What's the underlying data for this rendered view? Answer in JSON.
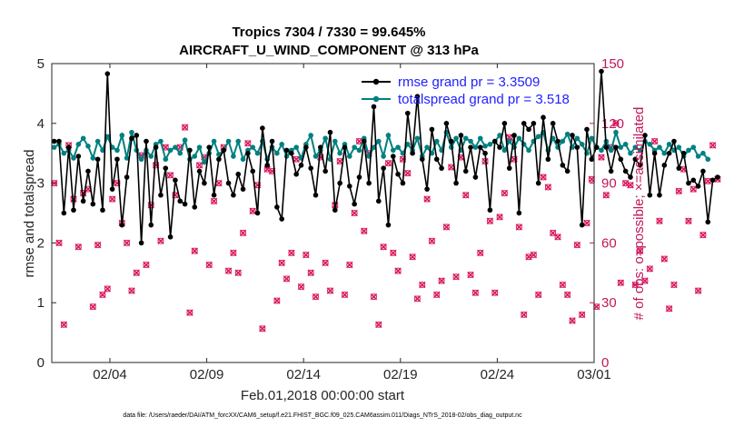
{
  "chart_data": {
    "type": "line",
    "title": "Tropics 7304 / 7330 = 99.645%",
    "subtitle": "AIRCRAFT_U_WIND_COMPONENT @ 313 hPa",
    "xlabel": "Feb.01,2018 00:00:00 start",
    "ylabel": "rmse and totalspread",
    "y2label": "# of obs: o=possible; ×=assimilated",
    "xlim": [
      0,
      28
    ],
    "ylim": [
      0,
      5
    ],
    "y2lim": [
      0,
      150
    ],
    "xticks": [
      {
        "x": 3,
        "label": "02/04"
      },
      {
        "x": 8,
        "label": "02/09"
      },
      {
        "x": 13,
        "label": "02/14"
      },
      {
        "x": 18,
        "label": "02/19"
      },
      {
        "x": 23,
        "label": "02/24"
      },
      {
        "x": 28,
        "label": "03/01"
      }
    ],
    "yticks": [
      "0",
      "1",
      "2",
      "3",
      "4",
      "5"
    ],
    "y2ticks": [
      "0",
      "30",
      "60",
      "90",
      "120",
      "150"
    ],
    "legend": [
      "rmse grand pr = 3.3509",
      "totalspread grand pr = 3.518"
    ],
    "legend_position": "top-right",
    "footer": "data file: /Users/raeder/DAI/ATM_forcXX/CAM6_setup/f.e21.FHIST_BGC.f09_025.CAM6assim.011/Diags_NTrS_2018-02/obs_diag_output.nc",
    "series": [
      {
        "name": "rmse",
        "color": "#000000",
        "x_start": 0.125,
        "x_step": 0.25,
        "values": [
          3.7,
          3.7,
          2.5,
          3.6,
          2.55,
          3.45,
          2.7,
          3.2,
          2.65,
          3.4,
          2.55,
          4.83,
          2.9,
          3.4,
          2.3,
          3.1,
          3.75,
          3.8,
          2.0,
          3.7,
          2.3,
          3.6,
          2.8,
          3.25,
          2.1,
          3.05,
          2.7,
          2.65,
          3.55,
          2.6,
          3.2,
          3.0,
          3.6,
          2.8,
          3.4,
          3.55,
          3.0,
          2.8,
          3.15,
          2.9,
          3.5,
          3.2,
          2.5,
          3.92,
          3.3,
          3.7,
          2.6,
          2.4,
          3.55,
          3.5,
          3.15,
          3.3,
          3.6,
          3.25,
          2.8,
          3.6,
          3.2,
          3.85,
          2.55,
          3.0,
          3.6,
          2.95,
          2.65,
          3.1,
          3.7,
          3.0,
          4.28,
          2.7,
          3.25,
          2.3,
          3.45,
          3.15,
          3.0,
          4.17,
          3.5,
          4.45,
          3.4,
          2.9,
          3.9,
          3.4,
          3.25,
          4.0,
          3.7,
          3.0,
          3.8,
          3.2,
          3.6,
          3.1,
          3.6,
          3.5,
          2.55,
          3.7,
          3.6,
          4.0,
          3.25,
          3.8,
          2.5,
          4.0,
          3.9,
          4.0,
          3.0,
          4.1,
          3.4,
          4.0,
          3.7,
          3.3,
          3.2,
          3.8,
          3.6,
          2.3,
          3.9,
          3.4,
          3.6,
          4.87,
          3.6,
          3.2,
          3.6,
          3.4,
          3.2,
          3.1,
          3.4,
          3.3,
          3.8,
          2.8,
          3.5,
          2.8,
          3.3,
          3.5,
          3.7,
          3.25,
          3.5,
          3.0,
          3.05,
          2.95,
          3.2,
          2.35,
          3.05,
          3.1
        ]
      },
      {
        "name": "totalspread",
        "color": "#008080",
        "x_start": 0.125,
        "x_step": 0.25,
        "values": [
          3.6,
          3.65,
          3.5,
          3.55,
          3.42,
          3.65,
          3.75,
          3.62,
          3.42,
          3.7,
          3.55,
          3.78,
          3.6,
          3.55,
          3.8,
          3.42,
          3.85,
          3.55,
          3.4,
          3.55,
          3.45,
          3.65,
          3.7,
          3.4,
          3.55,
          3.6,
          3.5,
          3.72,
          3.4,
          3.45,
          3.6,
          3.35,
          3.5,
          3.7,
          3.48,
          3.55,
          3.7,
          3.45,
          3.7,
          3.4,
          3.55,
          3.6,
          3.5,
          3.7,
          3.4,
          3.6,
          3.5,
          3.65,
          3.45,
          3.55,
          3.6,
          3.42,
          3.65,
          3.8,
          3.45,
          3.55,
          3.75,
          3.4,
          3.7,
          3.5,
          3.65,
          3.45,
          3.6,
          3.55,
          3.75,
          3.45,
          3.6,
          3.7,
          3.45,
          3.8,
          3.55,
          3.6,
          3.5,
          3.65,
          3.55,
          3.75,
          3.45,
          3.6,
          3.5,
          3.7,
          3.55,
          3.85,
          3.6,
          3.75,
          3.55,
          3.75,
          3.7,
          3.6,
          3.75,
          3.62,
          3.65,
          3.7,
          3.8,
          3.55,
          3.7,
          3.6,
          3.75,
          3.65,
          3.55,
          3.7,
          3.78,
          3.85,
          3.55,
          3.75,
          3.6,
          3.7,
          3.82,
          3.6,
          3.75,
          3.65,
          3.5,
          3.75,
          3.6,
          3.55,
          3.7,
          3.55,
          3.85,
          3.6,
          3.65,
          3.5,
          3.6,
          3.55,
          3.7,
          3.65,
          3.55,
          3.6,
          3.5,
          3.65,
          3.55,
          3.6,
          3.45,
          3.55,
          3.6,
          3.45,
          3.5,
          3.4
        ]
      },
      {
        "name": "# of obs assimilated",
        "color": "#d81b60",
        "marker": "×",
        "x_start": 0.125,
        "x_step": 0.25,
        "values": [
          90,
          60,
          19,
          109,
          82,
          58,
          85,
          87,
          28,
          59,
          34,
          37,
          82,
          90,
          70,
          60,
          36,
          45,
          104,
          49,
          79,
          99,
          61,
          108,
          94,
          84,
          108,
          118,
          25,
          56,
          99,
          103,
          49,
          81,
          90,
          108,
          46,
          55,
          45,
          65,
          110,
          76,
          89,
          17,
          97,
          96,
          31,
          50,
          42,
          55,
          102,
          38,
          54,
          45,
          33,
          103,
          50,
          36,
          79,
          101,
          34,
          49,
          75,
          111,
          66,
          105,
          33,
          19,
          58,
          100,
          55,
          46,
          102,
          95,
          53,
          32,
          39,
          82,
          61,
          34,
          41,
          68,
          98,
          43,
          103,
          84,
          44,
          35,
          55,
          101,
          71,
          35,
          73,
          85,
          113,
          102,
          68,
          24,
          53,
          54,
          34,
          93,
          88,
          65,
          63,
          39,
          34,
          21,
          59,
          24,
          70,
          92,
          28,
          103,
          84,
          108,
          120,
          40,
          90,
          89,
          39,
          56,
          41,
          47,
          111,
          71,
          52,
          27,
          39,
          86,
          97,
          71,
          87,
          36,
          64,
          91,
          109,
          92
        ]
      },
      {
        "name": "# of obs possible",
        "color": "#d81b60",
        "marker": "o",
        "x_start": 0.125,
        "x_step": 0.25,
        "values": [
          90,
          60,
          19,
          109,
          82,
          58,
          85,
          87,
          28,
          59,
          34,
          37,
          82,
          90,
          70,
          60,
          36,
          45,
          104,
          49,
          79,
          99,
          61,
          108,
          94,
          84,
          108,
          118,
          25,
          56,
          99,
          103,
          49,
          81,
          90,
          108,
          46,
          55,
          45,
          65,
          110,
          76,
          89,
          17,
          97,
          96,
          31,
          50,
          42,
          55,
          102,
          38,
          54,
          45,
          33,
          103,
          50,
          36,
          79,
          101,
          34,
          49,
          75,
          111,
          66,
          105,
          33,
          19,
          58,
          100,
          55,
          46,
          102,
          95,
          53,
          32,
          39,
          82,
          61,
          34,
          41,
          68,
          98,
          43,
          103,
          84,
          44,
          35,
          55,
          101,
          71,
          35,
          73,
          85,
          113,
          102,
          68,
          24,
          53,
          54,
          34,
          93,
          88,
          65,
          63,
          39,
          34,
          21,
          59,
          24,
          70,
          92,
          28,
          103,
          84,
          108,
          120,
          40,
          90,
          89,
          39,
          56,
          41,
          47,
          111,
          71,
          52,
          27,
          39,
          86,
          97,
          71,
          87,
          36,
          64,
          91,
          109,
          92
        ]
      }
    ]
  }
}
